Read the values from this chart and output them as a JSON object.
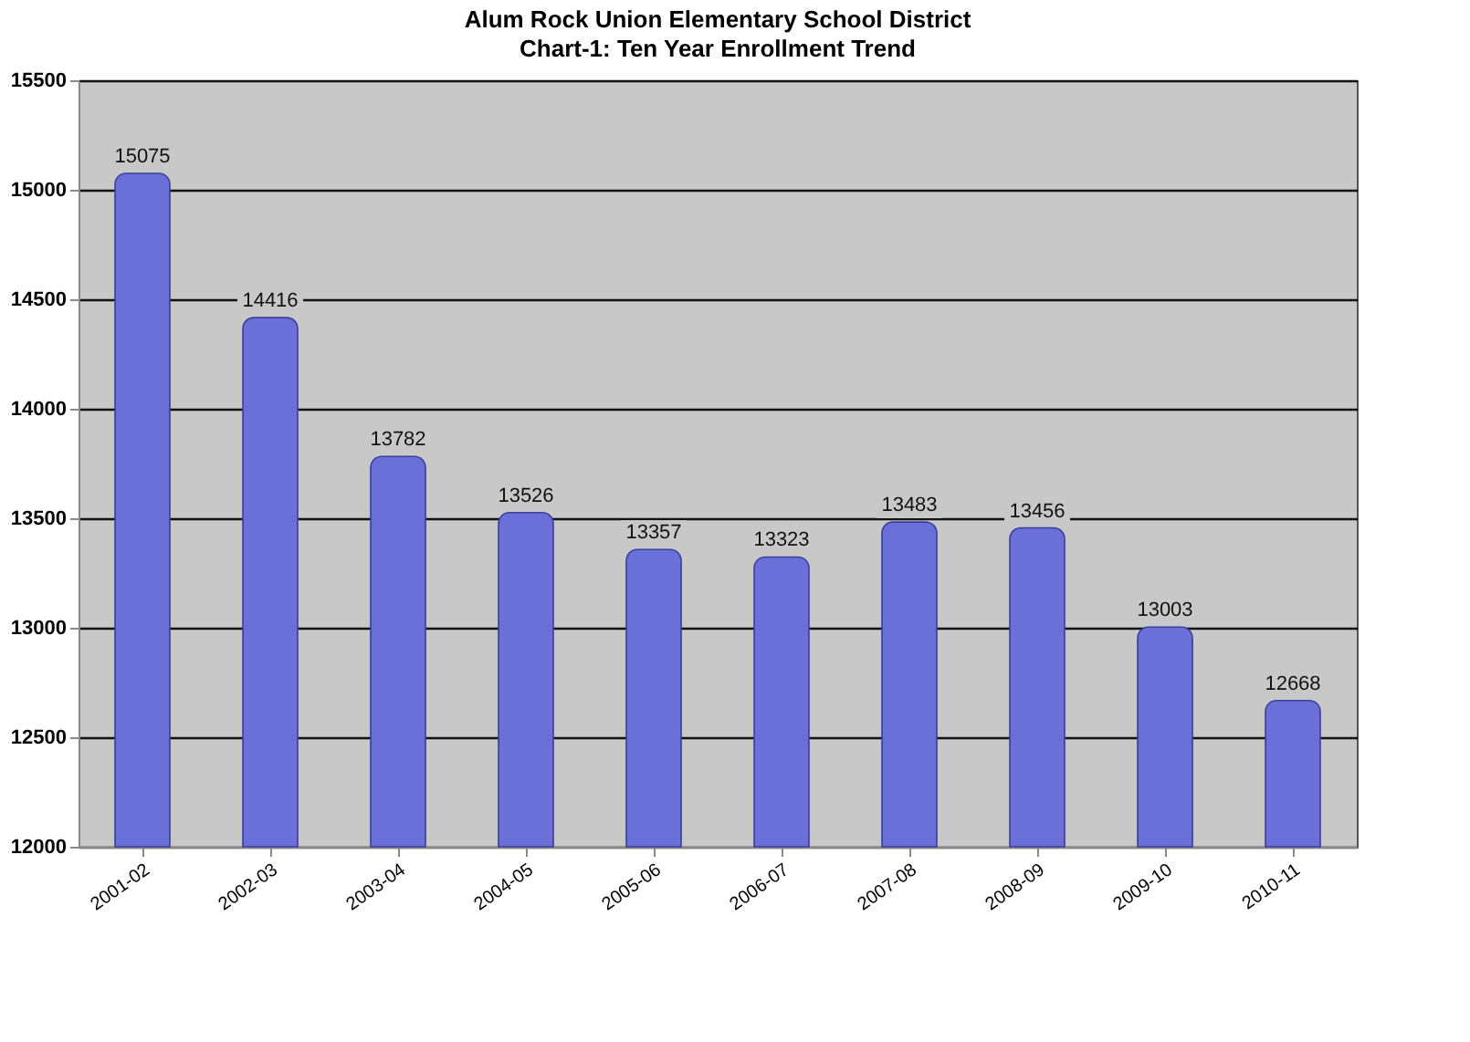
{
  "chart_data": {
    "type": "bar",
    "title": "Alum Rock Union Elementary School District",
    "subtitle": "Chart-1: Ten Year Enrollment Trend",
    "categories": [
      "2001-02",
      "2002-03",
      "2003-04",
      "2004-05",
      "2005-06",
      "2006-07",
      "2007-08",
      "2008-09",
      "2009-10",
      "2010-11"
    ],
    "values": [
      15075,
      14416,
      13782,
      13526,
      13357,
      13323,
      13483,
      13456,
      13003,
      12668
    ],
    "color": "#6b70d8",
    "ylim": [
      12000,
      15500
    ],
    "yticks": [
      12000,
      12500,
      13000,
      13500,
      14000,
      14500,
      15000,
      15500
    ],
    "grid": "y",
    "data_labels": true
  }
}
